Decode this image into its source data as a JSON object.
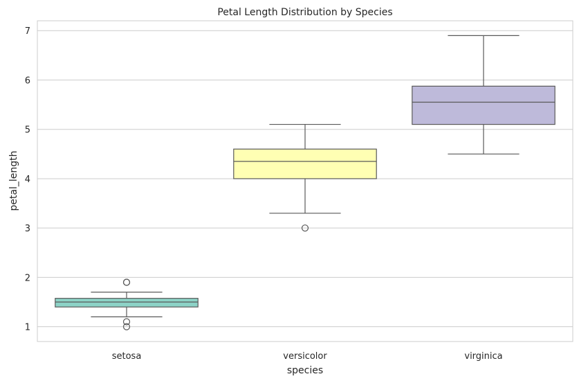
{
  "chart_data": {
    "type": "box",
    "title": "Petal Length Distribution by Species",
    "xlabel": "species",
    "ylabel": "petal_length",
    "categories": [
      "setosa",
      "versicolor",
      "virginica"
    ],
    "ylim": [
      0.7,
      7.2
    ],
    "yticks": [
      1,
      2,
      3,
      4,
      5,
      6,
      7
    ],
    "grid": true,
    "boxes": [
      {
        "category": "setosa",
        "whisker_low": 1.2,
        "q1": 1.4,
        "median": 1.5,
        "q3": 1.575,
        "whisker_high": 1.7,
        "outliers": [
          1.0,
          1.1,
          1.9,
          1.9
        ],
        "color": "#8dd3c7"
      },
      {
        "category": "versicolor",
        "whisker_low": 3.3,
        "q1": 4.0,
        "median": 4.35,
        "q3": 4.6,
        "whisker_high": 5.1,
        "outliers": [
          3.0
        ],
        "color": "#ffffb3"
      },
      {
        "category": "virginica",
        "whisker_low": 4.5,
        "q1": 5.1,
        "median": 5.55,
        "q3": 5.875,
        "whisker_high": 6.9,
        "outliers": [],
        "color": "#bebada"
      }
    ]
  },
  "colors": {
    "grid": "#cccccc",
    "spine": "#cccccc",
    "edge": "#595959",
    "text": "#262626"
  }
}
